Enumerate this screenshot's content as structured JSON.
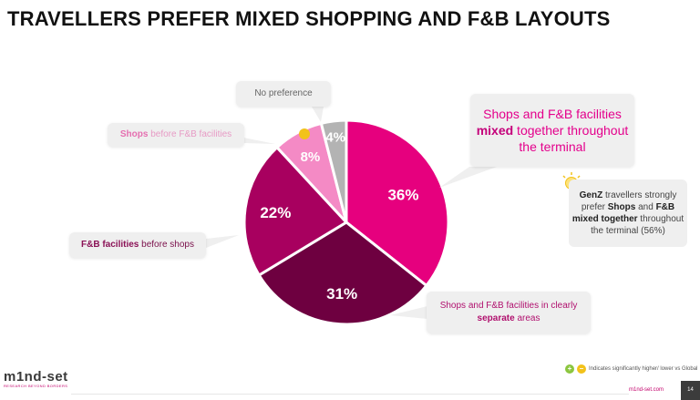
{
  "header": {
    "title": "TRAVELLERS PREFER MIXED SHOPPING AND F&B LAYOUTS"
  },
  "chart_data": {
    "type": "pie",
    "slices": [
      {
        "label_parts": [
          "Shops and F&B facilities ",
          "mixed",
          " together throughout the terminal"
        ],
        "value": 36,
        "display": "36%",
        "color": "#e6007e"
      },
      {
        "label_parts": [
          "Shops and F&B facilities in clearly ",
          "separate",
          " areas"
        ],
        "value": 31,
        "display": "31%",
        "color": "#6e0040"
      },
      {
        "label_parts": [
          "F&B facilities",
          " before shops"
        ],
        "value": 22,
        "display": "22%",
        "color": "#a8005f"
      },
      {
        "label_parts": [
          "Shops",
          " before F&B facilities"
        ],
        "value": 8,
        "display": "8%",
        "color": "#f48ac5"
      },
      {
        "label_parts": [
          "No preference"
        ],
        "value": 4,
        "display": "4%",
        "color": "#b3b3b3"
      }
    ]
  },
  "genz_note": {
    "parts": [
      "GenZ",
      " travellers strongly prefer ",
      "Shops",
      " and ",
      "F&B mixed together",
      " throughout the terminal (56%)"
    ]
  },
  "legend": {
    "text": "Indicates significantly  higher/ lower vs Global",
    "plus": "+",
    "minus": "–",
    "colors": {
      "higher": "#8cc63f",
      "lower": "#f2c21b"
    }
  },
  "footer": {
    "brand": "m1nd-set",
    "tagline": "RESEARCH BEYOND BORDERS",
    "url": "m1nd-set.com",
    "page": "14"
  }
}
